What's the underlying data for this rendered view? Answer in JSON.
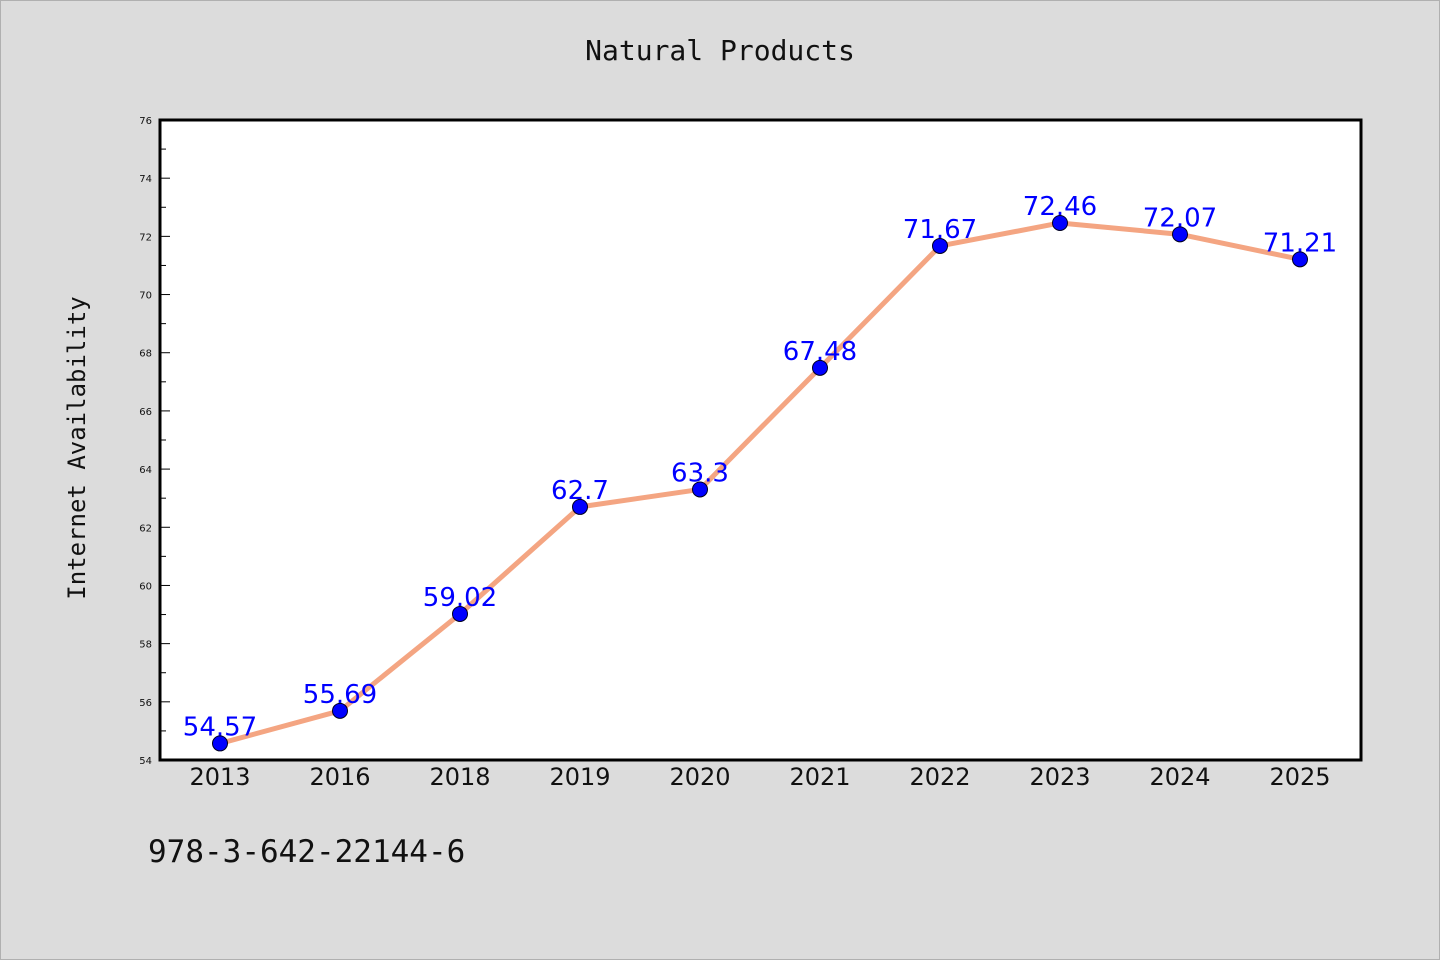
{
  "chart_data": {
    "type": "line",
    "title": "Natural Products",
    "xlabel": "",
    "ylabel": "Internet Availability",
    "categories": [
      "2013",
      "2016",
      "2018",
      "2019",
      "2020",
      "2021",
      "2022",
      "2023",
      "2024",
      "2025"
    ],
    "series": [
      {
        "values": [
          54.57,
          55.69,
          59.02,
          62.7,
          63.3,
          67.48,
          71.67,
          72.46,
          72.07,
          71.21
        ],
        "labels": [
          "54.57",
          "55.69",
          "59.02",
          "62.7",
          "63.3",
          "67.48",
          "71.67",
          "72.46",
          "72.07",
          "71.21"
        ]
      }
    ],
    "ylim": [
      54,
      76
    ],
    "yticks": [
      54,
      56,
      58,
      60,
      62,
      64,
      66,
      68,
      70,
      72,
      74,
      76
    ],
    "grid": false,
    "legend": "none",
    "colors": {
      "line": "#f4a582",
      "marker": "#0000ff",
      "label": "#0000ff",
      "background": "#dcdcdc",
      "plot_background": "#ffffff"
    }
  },
  "footer": {
    "code": "978-3-642-22144-6"
  }
}
